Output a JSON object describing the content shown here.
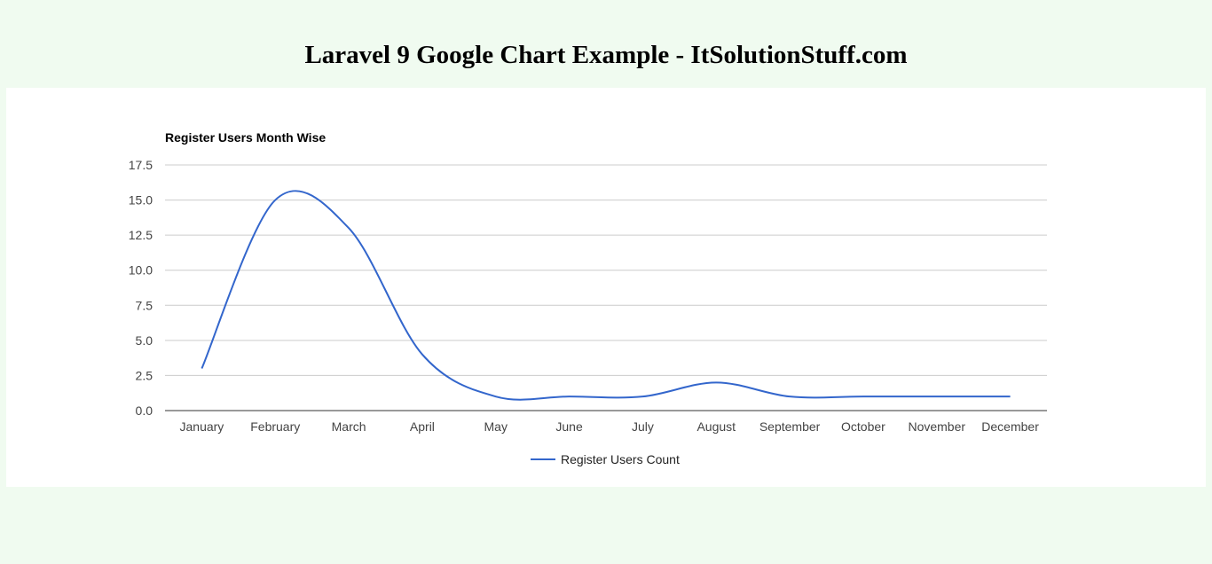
{
  "page": {
    "heading": "Laravel 9 Google Chart Example - ItSolutionStuff.com"
  },
  "chart_data": {
    "type": "line",
    "title": "Register Users Month Wise",
    "xlabel": "",
    "ylabel": "",
    "categories": [
      "January",
      "February",
      "March",
      "April",
      "May",
      "June",
      "July",
      "August",
      "September",
      "October",
      "November",
      "December"
    ],
    "series": [
      {
        "name": "Register Users Count",
        "values": [
          3,
          15,
          13,
          4,
          1,
          1,
          1,
          2,
          1,
          1,
          1,
          1
        ],
        "color": "#3366cc"
      }
    ],
    "ylim": [
      0,
      17.5
    ],
    "yticks": [
      "0.0",
      "2.5",
      "5.0",
      "7.5",
      "10.0",
      "12.5",
      "15.0",
      "17.5"
    ],
    "curve": "smooth",
    "grid": true,
    "legend_position": "bottom"
  }
}
